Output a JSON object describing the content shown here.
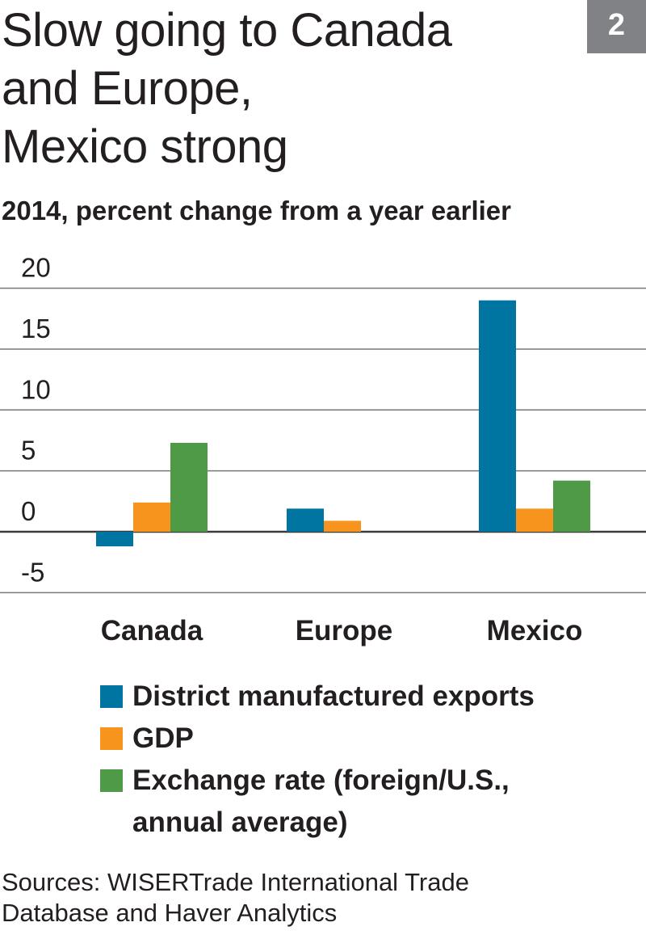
{
  "title": [
    "Slow going to Canada",
    "and Europe,",
    "Mexico strong"
  ],
  "badge": "2",
  "chart_data": {
    "type": "bar",
    "title": "Slow going to Canada and Europe, Mexico strong",
    "subtitle": "2014, percent change from a year earlier",
    "categories": [
      "Canada",
      "Europe",
      "Mexico"
    ],
    "series": [
      {
        "name": "District manufactured exports",
        "color": "#0075a2",
        "values": [
          -1.2,
          1.9,
          19.0
        ]
      },
      {
        "name": "GDP",
        "color": "#f7941e",
        "values": [
          2.4,
          0.9,
          1.9
        ]
      },
      {
        "name": "Exchange rate (foreign/U.S., annual average)",
        "color": "#4f9a47",
        "values": [
          7.3,
          null,
          4.2
        ]
      }
    ],
    "ylim": [
      -5,
      20
    ],
    "yticks": [
      20,
      15,
      10,
      5,
      0,
      -5
    ],
    "grid": true,
    "legend": "bottom"
  },
  "legend_lines": [
    "District manufactured exports",
    "GDP",
    "Exchange rate (foreign/U.S.,",
    "annual average)"
  ],
  "source": [
    "Sources: WISERTrade International Trade",
    "Database and Haver Analytics"
  ]
}
